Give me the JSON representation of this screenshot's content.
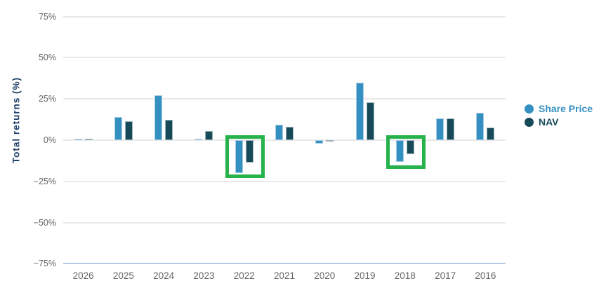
{
  "chart_data": {
    "type": "bar",
    "title": "",
    "xlabel": "",
    "ylabel": "Total returns (%)",
    "categories": [
      "2026",
      "2025",
      "2024",
      "2023",
      "2022",
      "2021",
      "2020",
      "2019",
      "2018",
      "2017",
      "2016"
    ],
    "series": [
      {
        "name": "Share Price",
        "color": "#3590c2",
        "edge_color": "#a6cce4",
        "values": [
          1,
          14,
          27,
          1,
          -20,
          9.5,
          -2,
          35,
          -13,
          13,
          16.5
        ]
      },
      {
        "name": "NAV",
        "color": "#164a59",
        "edge_color": "#9bb3ba",
        "values": [
          1,
          11.5,
          12.5,
          5.5,
          -13.5,
          8,
          -1,
          23,
          -8.5,
          13,
          7.5
        ]
      }
    ],
    "y_ticks": [
      {
        "value": 75,
        "label": "75%"
      },
      {
        "value": 50,
        "label": "50%"
      },
      {
        "value": 25,
        "label": "25%"
      },
      {
        "value": 0,
        "label": "0%"
      },
      {
        "value": -25,
        "label": "−25%"
      },
      {
        "value": -50,
        "label": "−50%"
      },
      {
        "value": -75,
        "label": "−75%"
      }
    ],
    "ylim": [
      -75,
      75
    ],
    "grid": true,
    "legend_position": "right-middle",
    "highlights": [
      {
        "category": "2022",
        "from_pct": 3,
        "to_pct": -23
      },
      {
        "category": "2018",
        "from_pct": 3,
        "to_pct": -17.5
      }
    ],
    "highlight_color": "#28b24c"
  },
  "styles": {
    "background": "#ffffff",
    "axis_title_color": "#20406a",
    "tick_label_color": "#666666",
    "x_label_color": "#666666",
    "gridline_color": "#e9e9e9",
    "baseline_color": "#b3cbe4"
  }
}
